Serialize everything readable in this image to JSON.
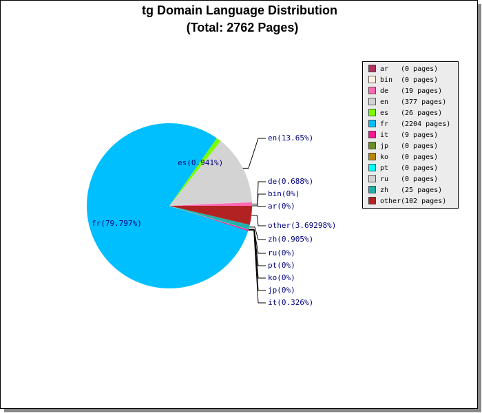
{
  "chart_data": {
    "type": "pie",
    "title": "tg Domain Language Distribution",
    "subtitle": "(Total: 2762 Pages)",
    "categories": [
      "ar",
      "bin",
      "de",
      "en",
      "es",
      "fr",
      "it",
      "jp",
      "ko",
      "pt",
      "ru",
      "zh",
      "other"
    ],
    "values": [
      0,
      0,
      0.688,
      13.65,
      0.941,
      79.797,
      0.326,
      0,
      0,
      0,
      0,
      0.905,
      3.69298
    ],
    "value_labels": [
      "ar(0%)",
      "bin(0%)",
      "de(0.688%)",
      "en(13.65%)",
      "es(0.941%)",
      "fr(79.797%)",
      "it(0.326%)",
      "jp(0%)",
      "ko(0%)",
      "pt(0%)",
      "ru(0%)",
      "zh(0.905%)",
      "other(3.69298%)"
    ],
    "colors": [
      "#b03060",
      "#fff0e0",
      "#ff69b4",
      "#d3d3d3",
      "#7cfc00",
      "#00bfff",
      "#ff1493",
      "#6b8e23",
      "#b8860b",
      "#00ffff",
      "#d3d3d3",
      "#20b2aa",
      "#b22222"
    ],
    "legend_labels": [
      "(0 pages)",
      "(0 pages)",
      "(19 pages)",
      "(377 pages)",
      "(26 pages)",
      "(2204 pages)",
      "(9 pages)",
      "(0 pages)",
      "(0 pages)",
      "(0 pages)",
      "(0 pages)",
      "(25 pages)",
      "(102 pages)"
    ],
    "legend": "right"
  }
}
